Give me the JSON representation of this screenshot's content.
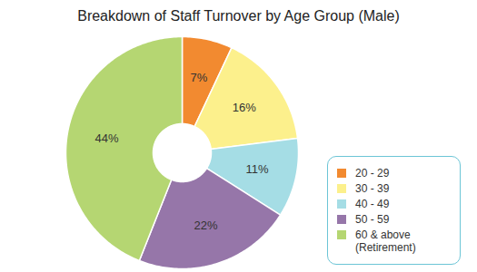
{
  "chart_data": {
    "type": "pie",
    "title": "Breakdown of Staff Turnover by Age Group (Male)",
    "categories": [
      "20 - 29",
      "30 - 39",
      "40 - 49",
      "50 - 59",
      "60 & above\n(Retirement)"
    ],
    "values": [
      7,
      16,
      11,
      22,
      44
    ],
    "value_labels": [
      "7%",
      "16%",
      "11%",
      "22%",
      "44%"
    ],
    "colors": [
      "#f28a30",
      "#fcf08c",
      "#a5dde5",
      "#9676a9",
      "#b5d672"
    ],
    "data_labels": true,
    "legend": "bottom-right"
  }
}
